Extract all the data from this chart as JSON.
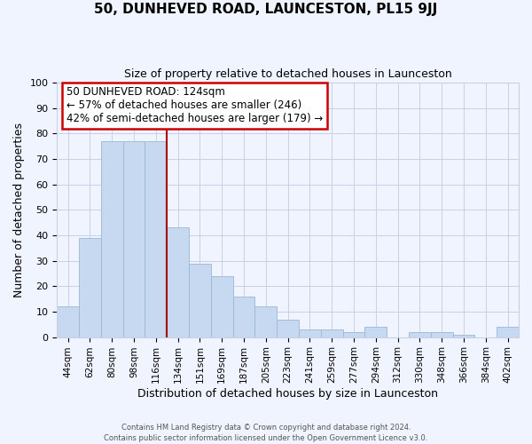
{
  "title": "50, DUNHEVED ROAD, LAUNCESTON, PL15 9JJ",
  "subtitle": "Size of property relative to detached houses in Launceston",
  "xlabel": "Distribution of detached houses by size in Launceston",
  "ylabel": "Number of detached properties",
  "footer_line1": "Contains HM Land Registry data © Crown copyright and database right 2024.",
  "footer_line2": "Contains public sector information licensed under the Open Government Licence v3.0.",
  "bar_labels": [
    "44sqm",
    "62sqm",
    "80sqm",
    "98sqm",
    "116sqm",
    "134sqm",
    "151sqm",
    "169sqm",
    "187sqm",
    "205sqm",
    "223sqm",
    "241sqm",
    "259sqm",
    "277sqm",
    "294sqm",
    "312sqm",
    "330sqm",
    "348sqm",
    "366sqm",
    "384sqm",
    "402sqm"
  ],
  "bar_values": [
    12,
    39,
    77,
    77,
    77,
    43,
    29,
    24,
    16,
    12,
    7,
    3,
    3,
    2,
    4,
    0,
    2,
    2,
    1,
    0,
    4
  ],
  "bar_color": "#c6d9f0",
  "bar_edge_color": "#9ab8d8",
  "vline_x": 4.5,
  "vline_color": "#aa0000",
  "ylim": [
    0,
    100
  ],
  "yticks": [
    0,
    10,
    20,
    30,
    40,
    50,
    60,
    70,
    80,
    90,
    100
  ],
  "annotation_box_text": "50 DUNHEVED ROAD: 124sqm\n← 57% of detached houses are smaller (246)\n42% of semi-detached houses are larger (179) →",
  "bg_color": "#f0f4ff",
  "grid_color": "#c8d0e8",
  "title_fontsize": 11,
  "subtitle_fontsize": 9,
  "annot_fontsize": 8.5,
  "xlabel_fontsize": 9,
  "ylabel_fontsize": 9,
  "tick_fontsize": 8,
  "xtick_fontsize": 7.5
}
